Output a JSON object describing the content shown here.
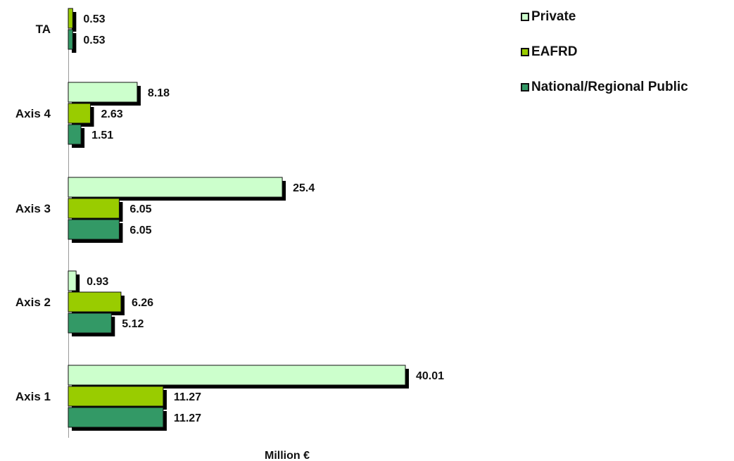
{
  "chart_data": {
    "type": "bar",
    "orientation": "horizontal",
    "categories": [
      "TA",
      "Axis 4",
      "Axis 3",
      "Axis 2",
      "Axis 1"
    ],
    "series": [
      {
        "name": "Private",
        "color": "#ccffcc",
        "values": [
          null,
          8.18,
          25.4,
          0.93,
          40.01
        ],
        "labels": [
          null,
          "8.18",
          "25.4",
          "0.93",
          "40.01"
        ]
      },
      {
        "name": "EAFRD",
        "color": "#99cc00",
        "values": [
          0.53,
          2.63,
          6.05,
          6.26,
          11.27
        ],
        "labels": [
          "0.53",
          "2.63",
          "6.05",
          "6.26",
          "11.27"
        ]
      },
      {
        "name": "National/Regional Public",
        "color": "#339966",
        "values": [
          0.53,
          1.51,
          6.05,
          5.12,
          11.27
        ],
        "labels": [
          "0.53",
          "1.51",
          "6.05",
          "5.12",
          "11.27"
        ]
      }
    ],
    "xlabel": "Million €",
    "ylabel": "",
    "title": "",
    "xlim": [
      0,
      40.01
    ],
    "grid": false,
    "legend_position": "top-right"
  }
}
